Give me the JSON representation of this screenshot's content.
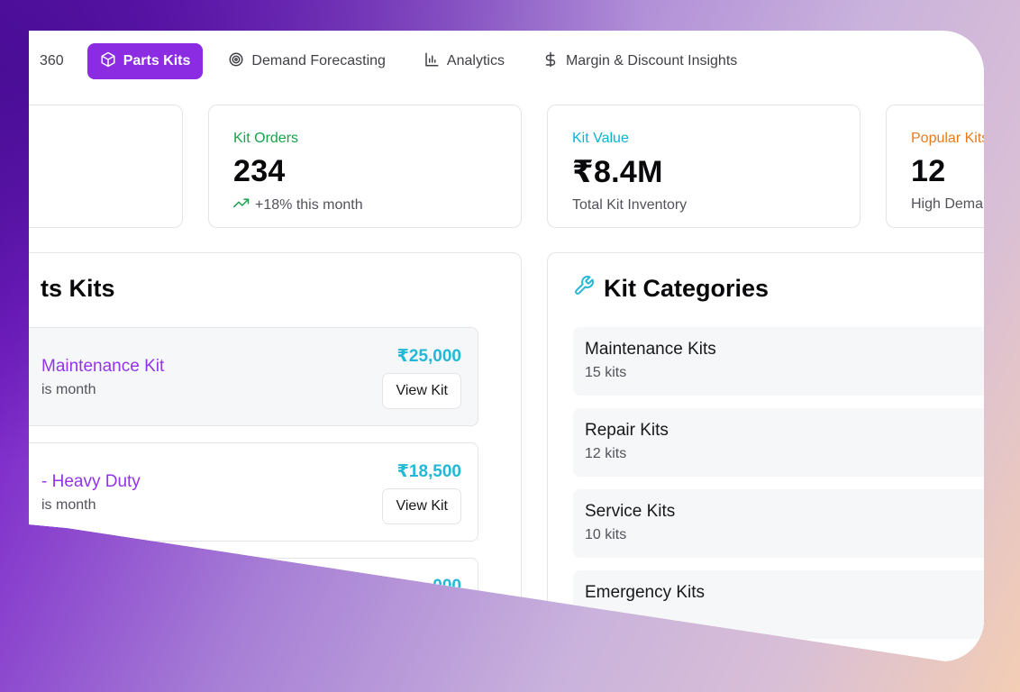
{
  "nav": {
    "partial_item": "360",
    "items": [
      {
        "label": "Parts Kits",
        "icon": "box-icon",
        "active": true
      },
      {
        "label": "Demand Forecasting",
        "icon": "target-icon",
        "active": false
      },
      {
        "label": "Analytics",
        "icon": "bar-chart-icon",
        "active": false
      },
      {
        "label": "Margin & Discount Insights",
        "icon": "dollar-icon",
        "active": false
      }
    ]
  },
  "stats": [
    {
      "label": "Kit Orders",
      "value": "234",
      "sub": "+18% this month",
      "color": "#16a34a"
    },
    {
      "label": "Kit Value",
      "value": "₹8.4M",
      "sub": "Total Kit Inventory",
      "color": "#06b6d4"
    },
    {
      "label": "Popular Kits",
      "value": "12",
      "sub": "High Demand",
      "color": "#ea7a1a"
    }
  ],
  "kits_panel": {
    "title": "ts Kits",
    "kits": [
      {
        "name": "Maintenance Kit",
        "sub": "is month",
        "price": "₹25,000",
        "button": "View Kit"
      },
      {
        "name": "- Heavy Duty",
        "sub": "is month",
        "price": "₹18,500",
        "button": "View Kit"
      },
      {
        "name": "",
        "sub": "",
        "price": "000",
        "button": ""
      }
    ]
  },
  "categories_panel": {
    "title": "Kit Categories",
    "icon": "wrench-icon",
    "categories": [
      {
        "name": "Maintenance Kits",
        "count": "15 kits"
      },
      {
        "name": "Repair Kits",
        "count": "12 kits"
      },
      {
        "name": "Service Kits",
        "count": "10 kits"
      },
      {
        "name": "Emergency Kits",
        "count": ""
      }
    ]
  }
}
